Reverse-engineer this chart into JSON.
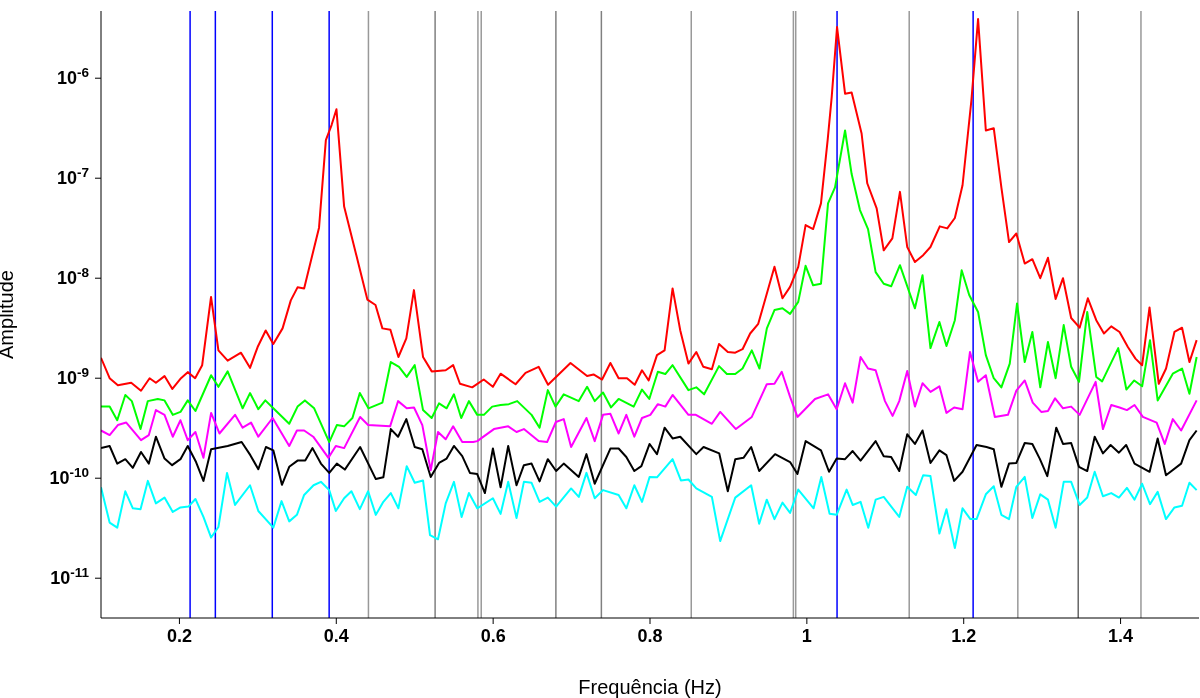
{
  "chart_data": {
    "type": "line",
    "xlabel": "Frequência (Hz)",
    "ylabel": "Amplitude",
    "log": "y",
    "xlim": [
      0.1,
      1.5
    ],
    "xticks": [
      0.2,
      0.4,
      0.6,
      0.8,
      1,
      1.2,
      1.4
    ],
    "ylim": [
      4e-12,
      4.7e-06
    ],
    "yticks": [
      {
        "value": 1e-11,
        "label": "10$^{-11}$"
      },
      {
        "value": 1e-10,
        "label": "10$^{-10}$"
      },
      {
        "value": 1e-09,
        "label": "10$^{-9}$"
      },
      {
        "value": 1e-08,
        "label": "10$^{-8}$"
      },
      {
        "value": 1e-07,
        "label": "10$^{-7}$"
      },
      {
        "value": 1e-06,
        "label": "10$^{-6}$"
      }
    ],
    "ref_lines": [
      {
        "axis": "x",
        "value": 0.2136,
        "color": "#0000ff"
      },
      {
        "axis": "x",
        "value": 0.2458,
        "color": "#0000ff"
      },
      {
        "axis": "x",
        "value": 0.3184,
        "color": "#0000ff"
      },
      {
        "axis": "x",
        "value": 0.3909,
        "color": "#0000ff"
      },
      {
        "axis": "x",
        "value": 1.0385,
        "color": "#0000ff"
      },
      {
        "axis": "x",
        "value": 1.212,
        "color": "#0000ff"
      },
      {
        "axis": "x",
        "value": 0.441,
        "color": "#999999"
      },
      {
        "axis": "x",
        "value": 0.526,
        "color": "#808080"
      },
      {
        "axis": "x",
        "value": 0.5806,
        "color": "#999999"
      },
      {
        "axis": "x",
        "value": 0.5848,
        "color": "#999999"
      },
      {
        "axis": "x",
        "value": 0.68,
        "color": "#808080"
      },
      {
        "axis": "x",
        "value": 0.738,
        "color": "#808080"
      },
      {
        "axis": "x",
        "value": 0.8526,
        "color": "#999999"
      },
      {
        "axis": "x",
        "value": 0.9828,
        "color": "#999999"
      },
      {
        "axis": "x",
        "value": 0.9858,
        "color": "#999999"
      },
      {
        "axis": "x",
        "value": 1.1305,
        "color": "#999999"
      },
      {
        "axis": "x",
        "value": 1.269,
        "color": "#999999"
      },
      {
        "axis": "x",
        "value": 1.346,
        "color": "#666666"
      },
      {
        "axis": "x",
        "value": 1.426,
        "color": "#999999"
      }
    ],
    "series": [
      {
        "color": "#00ffff",
        "x": [
          0.1,
          0.111,
          0.1207,
          0.131,
          0.1406,
          0.1504,
          0.1597,
          0.17,
          0.181,
          0.1915,
          0.2013,
          0.2115,
          0.2204,
          0.2306,
          0.2404,
          0.2497,
          0.2607,
          0.2709,
          0.29,
          0.3006,
          0.3197,
          0.3302,
          0.34,
          0.3498,
          0.359,
          0.371,
          0.3804,
          0.391,
          0.3994,
          0.41,
          0.4193,
          0.43,
          0.4406,
          0.4504,
          0.46,
          0.4695,
          0.4792,
          0.4898,
          0.5,
          0.5106,
          0.5195,
          0.5297,
          0.5395,
          0.55,
          0.5598,
          0.5691,
          0.5797,
          0.5997,
          0.6095,
          0.6192,
          0.6298,
          0.6392,
          0.649,
          0.6592,
          0.6697,
          0.6803,
          0.6994,
          0.7092,
          0.719,
          0.7295,
          0.7401,
          0.76,
          0.7698,
          0.78,
          0.7898,
          0.7995,
          0.8089,
          0.8288,
          0.8394,
          0.849,
          0.859,
          0.8789,
          0.8895,
          0.9087,
          0.929,
          0.9392,
          0.9489,
          0.9587,
          0.9689,
          0.9786,
          0.989,
          1.0086,
          1.0184,
          1.029,
          1.038,
          1.0507,
          1.0584,
          1.0685,
          1.0783,
          1.0877,
          1.098,
          1.1178,
          1.128,
          1.139,
          1.1483,
          1.1576,
          1.169,
          1.178,
          1.1887,
          1.1985,
          1.2085,
          1.2164,
          1.2282,
          1.2383,
          1.248,
          1.2578,
          1.2671,
          1.2778,
          1.2875,
          1.2976,
          1.3074,
          1.3172,
          1.3275,
          1.337,
          1.3478,
          1.3575,
          1.367,
          1.3775,
          1.3881,
          1.3979,
          1.4081,
          1.4178,
          1.4275,
          1.4375,
          1.4473,
          1.4579,
          1.4687,
          1.4784,
          1.4878,
          1.497
        ],
        "values": [
          8.1e-11,
          3.6e-11,
          3.2e-11,
          7.4e-11,
          5e-11,
          4.9e-11,
          9.4e-11,
          5.6e-11,
          6.4e-11,
          4.6e-11,
          5.1e-11,
          5.2e-11,
          6.2e-11,
          4.1e-11,
          2.55e-11,
          3.25e-11,
          1.13e-10,
          5.4e-11,
          8.5e-11,
          4.7e-11,
          3.2e-11,
          5.9e-11,
          3.7e-11,
          4.3e-11,
          6.8e-11,
          8.5e-11,
          9.2e-11,
          7.6e-11,
          4.7e-11,
          6.3e-11,
          7.4e-11,
          4.9e-11,
          7.4e-11,
          4.3e-11,
          5.8e-11,
          7.1e-11,
          5e-11,
          1.32e-10,
          9e-11,
          9.5e-11,
          2.7e-11,
          2.45e-11,
          5.6e-11,
          9.2e-11,
          4.1e-11,
          7.1e-11,
          5e-11,
          6.3e-11,
          4.4e-11,
          9.2e-11,
          4e-11,
          9.2e-11,
          9e-11,
          5.8e-11,
          6.4e-11,
          5.2e-11,
          7.9e-11,
          6.5e-11,
          1.13e-10,
          6.3e-11,
          7.6e-11,
          6.8e-11,
          5e-11,
          8.5e-11,
          5.8e-11,
          1.03e-10,
          1.02e-10,
          1.55e-10,
          9.5e-11,
          9.7e-11,
          7.9e-11,
          6.5e-11,
          2.35e-11,
          6.4e-11,
          8.5e-11,
          3.5e-11,
          6.1e-11,
          3.9e-11,
          5.7e-11,
          4.5e-11,
          7.7e-11,
          5e-11,
          1.03e-10,
          4.4e-11,
          4.3e-11,
          7.7e-11,
          5.4e-11,
          5.8e-11,
          3.2e-11,
          6.1e-11,
          6.5e-11,
          4.1e-11,
          8.2e-11,
          6.8e-11,
          1.07e-10,
          1.05e-10,
          2.8e-11,
          4.9e-11,
          2e-11,
          5e-11,
          3.9e-11,
          3.9e-11,
          6.9e-11,
          8.3e-11,
          4.3e-11,
          3.9e-11,
          8.2e-11,
          1.03e-10,
          4e-11,
          6.9e-11,
          6.1e-11,
          3.2e-11,
          9.2e-11,
          9.2e-11,
          5.4e-11,
          6.4e-11,
          1.16e-10,
          6.6e-11,
          7.1e-11,
          6.4e-11,
          8e-11,
          6.1e-11,
          8.8e-11,
          5.5e-11,
          7.3e-11,
          3.9e-11,
          5.1e-11,
          5.3e-11,
          9e-11,
          7.6e-11
        ]
      },
      {
        "color": "#000000",
        "x": [
          0.1,
          0.111,
          0.1207,
          0.131,
          0.1406,
          0.151,
          0.161,
          0.17,
          0.181,
          0.1907,
          0.2013,
          0.2106,
          0.2212,
          0.2306,
          0.2404,
          0.2615,
          0.2793,
          0.2904,
          0.3006,
          0.3103,
          0.3197,
          0.3307,
          0.34,
          0.3506,
          0.3604,
          0.3697,
          0.3804,
          0.391,
          0.4007,
          0.4109,
          0.4304,
          0.4504,
          0.46,
          0.4695,
          0.4788,
          0.4893,
          0.5,
          0.5097,
          0.5204,
          0.531,
          0.5407,
          0.55,
          0.5606,
          0.5704,
          0.5797,
          0.5895,
          0.5997,
          0.6095,
          0.6192,
          0.6298,
          0.6392,
          0.649,
          0.6592,
          0.6697,
          0.6803,
          0.69,
          0.7092,
          0.719,
          0.7295,
          0.7495,
          0.76,
          0.7698,
          0.78,
          0.789,
          0.7995,
          0.8089,
          0.8186,
          0.8288,
          0.8386,
          0.859,
          0.8683,
          0.8883,
          0.8992,
          0.9087,
          0.9192,
          0.929,
          0.9392,
          0.9595,
          0.9786,
          0.988,
          0.9985,
          1.018,
          1.0283,
          1.038,
          1.0487,
          1.0584,
          1.0685,
          1.0877,
          1.098,
          1.1075,
          1.1178,
          1.128,
          1.1378,
          1.1475,
          1.1576,
          1.169,
          1.178,
          1.1878,
          1.1985,
          1.2164,
          1.2291,
          1.2383,
          1.248,
          1.2578,
          1.2671,
          1.2778,
          1.2875,
          1.2969,
          1.3066,
          1.318,
          1.3266,
          1.337,
          1.347,
          1.3575,
          1.367,
          1.3775,
          1.3873,
          1.3979,
          1.4071,
          1.4178,
          1.437,
          1.4473,
          1.4579,
          1.4772,
          1.4878,
          1.497
        ],
        "values": [
          2e-10,
          2.1e-10,
          1.4e-10,
          1.55e-10,
          1.27e-10,
          1.83e-10,
          1.4e-10,
          2.6e-10,
          1.57e-10,
          1.35e-10,
          1.55e-10,
          2.1e-10,
          1.45e-10,
          9.4e-11,
          1.95e-10,
          2.1e-10,
          2.3e-10,
          1.7e-10,
          1.23e-10,
          2.05e-10,
          1.9e-10,
          8.6e-11,
          1.3e-10,
          1.5e-10,
          1.5e-10,
          2e-10,
          1.4e-10,
          1.13e-10,
          1.4e-10,
          1.22e-10,
          2.05e-10,
          9.8e-11,
          1.02e-10,
          3.1e-10,
          2.6e-10,
          3.9e-10,
          2.05e-10,
          1.95e-10,
          1.03e-10,
          1.42e-10,
          1.57e-10,
          2.1e-10,
          1.66e-10,
          1.13e-10,
          1.1e-10,
          7.1e-11,
          1.98e-10,
          8.1e-11,
          2.1e-10,
          8.5e-11,
          1.35e-10,
          1.4e-10,
          9.3e-11,
          1.55e-10,
          1.18e-10,
          1.4e-10,
          1.03e-10,
          1.74e-10,
          8.8e-11,
          1.98e-10,
          1.98e-10,
          1.63e-10,
          1.18e-10,
          1.32e-10,
          2.2e-10,
          1.74e-10,
          3.2e-10,
          2.5e-10,
          2.6e-10,
          1.74e-10,
          2.05e-10,
          1.77e-10,
          7.4e-11,
          1.55e-10,
          1.6e-10,
          2.05e-10,
          1.18e-10,
          1.74e-10,
          1.45e-10,
          1.1e-10,
          2.35e-10,
          1.9e-10,
          1.16e-10,
          1.57e-10,
          1.55e-10,
          1.87e-10,
          1.5e-10,
          2.35e-10,
          1.66e-10,
          1.63e-10,
          1.18e-10,
          2.75e-10,
          2.2e-10,
          3e-10,
          1.42e-10,
          1.9e-10,
          1.7e-10,
          9.4e-11,
          1.16e-10,
          2.15e-10,
          2.05e-10,
          1.95e-10,
          8.2e-11,
          1.4e-10,
          1.42e-10,
          2.25e-10,
          2.2e-10,
          1.57e-10,
          1.05e-10,
          3.2e-10,
          2.2e-10,
          2.25e-10,
          1.3e-10,
          1.18e-10,
          2.6e-10,
          1.77e-10,
          2.15e-10,
          1.8e-10,
          2.15e-10,
          1.4e-10,
          1.16e-10,
          2.5e-10,
          1.07e-10,
          1.4e-10,
          2.4e-10,
          3e-10
        ]
      },
      {
        "color": "#ff00ff",
        "x": [
          0.1,
          0.111,
          0.1215,
          0.1322,
          0.151,
          0.161,
          0.17,
          0.181,
          0.1915,
          0.2013,
          0.2106,
          0.2204,
          0.2306,
          0.2404,
          0.251,
          0.2709,
          0.2806,
          0.2913,
          0.3006,
          0.3188,
          0.34,
          0.3498,
          0.359,
          0.3706,
          0.39,
          0.3994,
          0.41,
          0.4304,
          0.4406,
          0.4686,
          0.4788,
          0.4898,
          0.4991,
          0.5097,
          0.5204,
          0.5297,
          0.5395,
          0.549,
          0.5606,
          0.5746,
          0.5797,
          0.601,
          0.6192,
          0.6298,
          0.6392,
          0.658,
          0.6688,
          0.68,
          0.69,
          0.6994,
          0.719,
          0.7295,
          0.7401,
          0.7495,
          0.76,
          0.7698,
          0.78,
          0.7898,
          0.8004,
          0.81,
          0.8195,
          0.8288,
          0.849,
          0.8585,
          0.8789,
          0.8895,
          0.9095,
          0.9298,
          0.9489,
          0.9587,
          0.968,
          0.9786,
          0.988,
          1.0104,
          1.027,
          1.038,
          1.0487,
          1.0584,
          1.0685,
          1.078,
          1.0877,
          1.0996,
          1.1093,
          1.1178,
          1.128,
          1.1378,
          1.1475,
          1.1577,
          1.169,
          1.178,
          1.1878,
          1.1985,
          1.208,
          1.2183,
          1.2282,
          1.2397,
          1.2564,
          1.2671,
          1.2778,
          1.288,
          1.2989,
          1.3074,
          1.3165,
          1.3266,
          1.337,
          1.3478,
          1.3682,
          1.3775,
          1.3881,
          1.3987,
          1.4081,
          1.4178,
          1.4284,
          1.446,
          1.4563,
          1.4666,
          1.4772,
          1.497
        ],
        "values": [
          3e-10,
          2.7e-10,
          3.4e-10,
          3.6e-10,
          2.4e-10,
          2.7e-10,
          4.8e-10,
          4.3e-10,
          2.6e-10,
          3.8e-10,
          2.4e-10,
          2.9e-10,
          1.6e-10,
          4.5e-10,
          2.8e-10,
          4.3e-10,
          3.2e-10,
          3.6e-10,
          2.6e-10,
          4e-10,
          2.1e-10,
          3e-10,
          3e-10,
          2.6e-10,
          1.6e-10,
          2.1e-10,
          2e-10,
          4.1e-10,
          3.4e-10,
          3.3e-10,
          5.9e-10,
          5e-10,
          5.1e-10,
          3.4e-10,
          1.2e-10,
          2.9e-10,
          2.45e-10,
          3.3e-10,
          2.3e-10,
          2.3e-10,
          2.35e-10,
          3.1e-10,
          3.3e-10,
          2.9e-10,
          3.1e-10,
          2.35e-10,
          2.3e-10,
          3.65e-10,
          3.9e-10,
          2.05e-10,
          4e-10,
          2.35e-10,
          4.3e-10,
          4.4e-10,
          2.8e-10,
          4.3e-10,
          2.6e-10,
          4e-10,
          4.3e-10,
          5.5e-10,
          5.2e-10,
          6.8e-10,
          4.3e-10,
          4.3e-10,
          3.5e-10,
          4.6e-10,
          3.1e-10,
          4.1e-10,
          8.7e-10,
          8.8e-10,
          1.16e-09,
          6.5e-10,
          4.1e-10,
          6.2e-10,
          6.9e-10,
          4.9e-10,
          8.9e-10,
          5.7e-10,
          1.63e-09,
          1.25e-09,
          1.2e-09,
          5.9e-10,
          4.2e-10,
          5.9e-10,
          1.18e-09,
          5.2e-10,
          8.9e-10,
          7.3e-10,
          8.3e-10,
          4.5e-10,
          5.1e-10,
          4.9e-10,
          1.83e-09,
          9.2e-10,
          1.07e-09,
          4.1e-10,
          4.3e-10,
          7.5e-10,
          9.5e-10,
          5.7e-10,
          4.6e-10,
          4.7e-10,
          6.3e-10,
          5e-10,
          5.2e-10,
          4.3e-10,
          9.2e-10,
          3.1e-10,
          5.4e-10,
          5.1e-10,
          4.8e-10,
          5.4e-10,
          4.1e-10,
          3.6e-10,
          2.2e-10,
          3.9e-10,
          3e-10,
          6e-10
        ]
      },
      {
        "color": "#00ff00",
        "x": [
          0.1,
          0.111,
          0.1207,
          0.131,
          0.1393,
          0.1504,
          0.1597,
          0.1724,
          0.181,
          0.1915,
          0.2013,
          0.2106,
          0.2204,
          0.2404,
          0.2497,
          0.2615,
          0.2806,
          0.29,
          0.3006,
          0.3095,
          0.3197,
          0.34,
          0.3506,
          0.36,
          0.3718,
          0.391,
          0.4007,
          0.41,
          0.4206,
          0.43,
          0.441,
          0.4588,
          0.4695,
          0.48,
          0.4898,
          0.5,
          0.5106,
          0.5216,
          0.531,
          0.5407,
          0.55,
          0.5593,
          0.5691,
          0.5797,
          0.5882,
          0.5988,
          0.6095,
          0.62,
          0.6307,
          0.649,
          0.6592,
          0.6697,
          0.6795,
          0.69,
          0.7092,
          0.7198,
          0.7295,
          0.7401,
          0.7503,
          0.76,
          0.7792,
          0.7898,
          0.7991,
          0.81,
          0.8195,
          0.8288,
          0.849,
          0.859,
          0.869,
          0.888,
          0.898,
          0.9087,
          0.918,
          0.9298,
          0.9396,
          0.949,
          0.9587,
          0.9689,
          0.9786,
          0.989,
          0.9984,
          1.008,
          1.018,
          1.027,
          1.0359,
          1.0487,
          1.0571,
          1.0677,
          1.078,
          1.0877,
          1.098,
          1.1075,
          1.1187,
          1.1378,
          1.1475,
          1.1576,
          1.169,
          1.178,
          1.1887,
          1.1974,
          1.207,
          1.2183,
          1.2282,
          1.2383,
          1.248,
          1.2587,
          1.268,
          1.2778,
          1.2875,
          1.2976,
          1.3074,
          1.3172,
          1.3275,
          1.337,
          1.347,
          1.3575,
          1.369,
          1.3765,
          1.397,
          1.4074,
          1.4174,
          1.4275,
          1.4375,
          1.4473,
          1.4666,
          1.4784,
          1.4878,
          1.497
        ],
        "values": [
          5.2e-10,
          5.2e-10,
          3.8e-10,
          6.8e-10,
          5.9e-10,
          3.1e-10,
          5.9e-10,
          6.2e-10,
          6e-10,
          4.3e-10,
          4.6e-10,
          6e-10,
          4.7e-10,
          1.07e-09,
          8.2e-10,
          1.17e-09,
          5e-10,
          7.1e-10,
          4.9e-10,
          6e-10,
          5e-10,
          3.5e-10,
          5.2e-10,
          6e-10,
          5e-10,
          2.3e-10,
          3.4e-10,
          3.3e-10,
          4e-10,
          7.1e-10,
          5e-10,
          5.7e-10,
          1.45e-09,
          1.3e-09,
          1.03e-09,
          1.35e-09,
          4.8e-10,
          4e-10,
          5.6e-10,
          5e-10,
          6.9e-10,
          4e-10,
          5.9e-10,
          4.3e-10,
          4.3e-10,
          5.2e-10,
          5.4e-10,
          5.5e-10,
          5.9e-10,
          4.3e-10,
          3.2e-10,
          7.6e-10,
          5.2e-10,
          6.9e-10,
          5.9e-10,
          8.2e-10,
          5.9e-10,
          7.2e-10,
          5.1e-10,
          6.2e-10,
          5.2e-10,
          7.7e-10,
          6.2e-10,
          1.16e-09,
          1.1e-09,
          1.35e-09,
          7.6e-10,
          8.1e-10,
          6.9e-10,
          1.32e-09,
          1.1e-09,
          1.1e-09,
          1.25e-09,
          1.9e-09,
          1.25e-09,
          3.15e-09,
          4.8e-09,
          5e-09,
          4.4e-09,
          5.8e-09,
          1.33e-08,
          8.5e-09,
          8.8e-09,
          5.6e-08,
          8.1e-08,
          3e-07,
          1.1e-07,
          4.8e-08,
          3.1e-08,
          1.15e-08,
          8.8e-09,
          8.3e-09,
          1.35e-08,
          5e-09,
          1.07e-08,
          2e-09,
          3.65e-09,
          2.1e-09,
          3.8e-09,
          1.2e-08,
          6.8e-09,
          4.6e-09,
          1.7e-09,
          1e-09,
          8.1e-10,
          1.4e-09,
          5.6e-09,
          1.45e-09,
          2.9e-09,
          8.1e-10,
          2.3e-09,
          1e-09,
          3.4e-09,
          1.3e-09,
          9.2e-10,
          4.6e-09,
          1.03e-09,
          9.3e-10,
          2e-09,
          7.7e-10,
          9.5e-10,
          8.3e-10,
          2.4e-09,
          6e-10,
          1.11e-09,
          1.25e-09,
          7e-10,
          1.63e-09
        ]
      },
      {
        "color": "#ff0000",
        "x": [
          0.1,
          0.111,
          0.1215,
          0.1385,
          0.151,
          0.162,
          0.17,
          0.181,
          0.191,
          0.202,
          0.2106,
          0.22,
          0.229,
          0.2403,
          0.2497,
          0.2615,
          0.2785,
          0.29,
          0.2997,
          0.31,
          0.3197,
          0.3315,
          0.342,
          0.3506,
          0.359,
          0.378,
          0.3867,
          0.394,
          0.4002,
          0.41,
          0.425,
          0.4397,
          0.45,
          0.4588,
          0.469,
          0.4792,
          0.4893,
          0.499,
          0.5106,
          0.5217,
          0.5395,
          0.549,
          0.5577,
          0.5733,
          0.588,
          0.5997,
          0.6095,
          0.6286,
          0.6413,
          0.658,
          0.67,
          0.6986,
          0.7198,
          0.728,
          0.7389,
          0.7495,
          0.76,
          0.7707,
          0.7805,
          0.7898,
          0.7983,
          0.8089,
          0.8186,
          0.8288,
          0.8386,
          0.849,
          0.859,
          0.868,
          0.8789,
          0.888,
          0.8992,
          0.9087,
          0.918,
          0.9277,
          0.938,
          0.9587,
          0.9689,
          0.9786,
          0.989,
          0.9984,
          1.008,
          1.018,
          1.0265,
          1.0317,
          1.0385,
          1.0487,
          1.0571,
          1.0698,
          1.077,
          1.089,
          1.098,
          1.109,
          1.1187,
          1.128,
          1.1378,
          1.1483,
          1.1576,
          1.1695,
          1.179,
          1.1887,
          1.1985,
          1.2098,
          1.2183,
          1.2282,
          1.2383,
          1.248,
          1.2578,
          1.2671,
          1.2778,
          1.2875,
          1.2976,
          1.3074,
          1.3172,
          1.3266,
          1.337,
          1.3478,
          1.3583,
          1.369,
          1.3788,
          1.3881,
          1.3987,
          1.4093,
          1.419,
          1.4275,
          1.4369,
          1.4487,
          1.458,
          1.4687,
          1.4784,
          1.4878,
          1.497
        ],
        "values": [
          1.6e-09,
          1e-09,
          8.5e-10,
          9e-10,
          7.5e-10,
          1e-09,
          9e-10,
          1.05e-09,
          7.8e-10,
          1e-09,
          1.15e-09,
          1e-09,
          1.35e-09,
          6.5e-09,
          1.9e-09,
          1.5e-09,
          1.8e-09,
          1.27e-09,
          2.05e-09,
          3e-09,
          2.2e-09,
          3.15e-09,
          6e-09,
          8.1e-09,
          7.9e-09,
          3.2e-08,
          2.4e-07,
          3.4e-07,
          4.9e-07,
          5.2e-08,
          1.77e-08,
          6.1e-09,
          5.4e-09,
          3.15e-09,
          3.05e-09,
          1.63e-09,
          2.5e-09,
          7.6e-09,
          1.63e-09,
          1.17e-09,
          1.2e-09,
          1.35e-09,
          8.8e-10,
          8.1e-10,
          9.7e-10,
          8.2e-10,
          1.11e-09,
          8.7e-10,
          1.13e-09,
          1.3e-09,
          8.6e-10,
          1.42e-09,
          1.05e-09,
          1.09e-09,
          9.7e-10,
          1.42e-09,
          1e-09,
          1e-09,
          8.6e-10,
          1.2e-09,
          9.5e-10,
          1.7e-09,
          1.9e-09,
          7.9e-09,
          3e-09,
          1.4e-09,
          1.83e-09,
          1.3e-09,
          1.23e-09,
          2.2e-09,
          1.83e-09,
          1.8e-09,
          1.95e-09,
          2.8e-09,
          3.5e-09,
          1.3e-08,
          6.3e-09,
          8.2e-09,
          1.3e-08,
          3.4e-08,
          3.1e-08,
          5.6e-08,
          2.4e-07,
          6.5e-07,
          3.25e-06,
          7e-07,
          7.2e-07,
          2.8e-07,
          8.9e-08,
          5e-08,
          1.9e-08,
          2.5e-08,
          7.3e-08,
          2.05e-08,
          1.45e-08,
          1.7e-08,
          2.05e-08,
          3.3e-08,
          3.15e-08,
          4e-08,
          8.5e-08,
          6e-07,
          3.9e-06,
          3e-07,
          3.16e-07,
          8.1e-08,
          2.3e-08,
          2.8e-08,
          1.4e-08,
          1.55e-08,
          1e-08,
          1.6e-08,
          6.2e-09,
          1e-08,
          4e-09,
          3.2e-09,
          6.3e-09,
          3.8e-09,
          2.8e-09,
          3.3e-09,
          2.9e-09,
          2.05e-09,
          1.57e-09,
          1.35e-09,
          5.1e-09,
          8.8e-10,
          1.25e-09,
          2.9e-09,
          3.2e-09,
          1.45e-09,
          2.4e-09
        ]
      }
    ]
  }
}
